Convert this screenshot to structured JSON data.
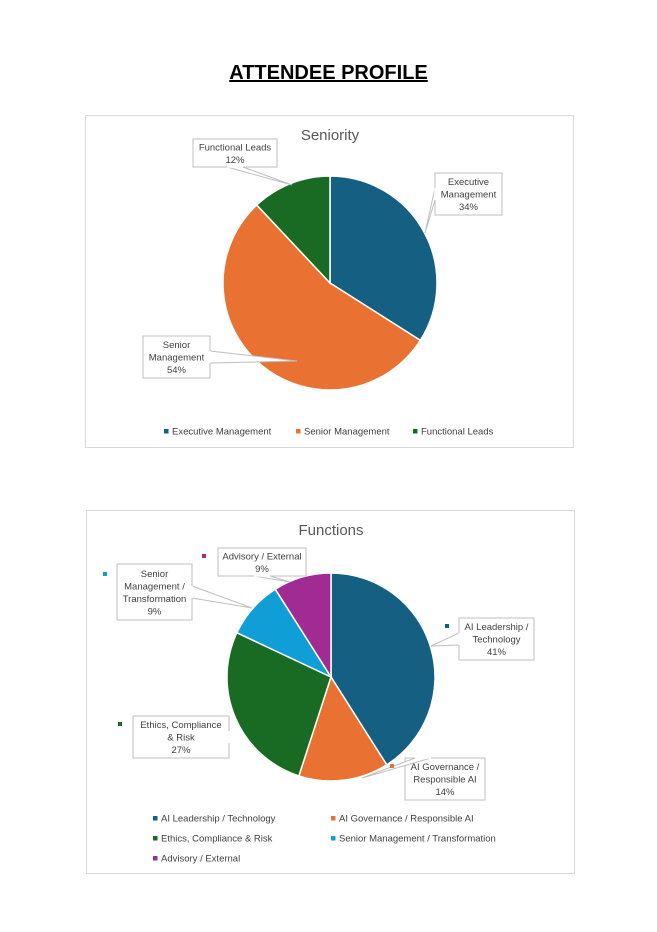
{
  "page": {
    "title": "ATTENDEE PROFILE"
  },
  "chart_data": [
    {
      "type": "pie",
      "title": "Seniority",
      "categories": [
        "Executive Management",
        "Senior Management",
        "Functional Leads"
      ],
      "values": [
        34,
        54,
        12
      ],
      "value_suffix": "%",
      "colors": [
        "#156082",
        "#E97132",
        "#196B24"
      ],
      "labels": [
        [
          "Executive",
          "Management",
          "34%"
        ],
        [
          "Senior",
          "Management",
          "54%"
        ],
        [
          "Functional Leads",
          "12%"
        ]
      ],
      "legend_position": "bottom"
    },
    {
      "type": "pie",
      "title": "Functions",
      "categories": [
        "AI Leadership / Technology",
        "AI Governance / Responsible AI",
        "Ethics, Compliance & Risk",
        "Senior Management / Transformation",
        "Advisory / External"
      ],
      "values": [
        41,
        14,
        27,
        9,
        9
      ],
      "value_suffix": "%",
      "colors": [
        "#156082",
        "#E97132",
        "#196B24",
        "#0F9ED5",
        "#A02B93"
      ],
      "labels": [
        [
          "AI Leadership /",
          "Technology",
          "41%"
        ],
        [
          "AI Governance /",
          "Responsible AI",
          "14%"
        ],
        [
          "Ethics, Compliance",
          "& Risk",
          "27%"
        ],
        [
          "Senior",
          "Management /",
          "Transformation",
          "9%"
        ],
        [
          "Advisory / External",
          "9%"
        ]
      ],
      "legend_position": "bottom"
    }
  ]
}
